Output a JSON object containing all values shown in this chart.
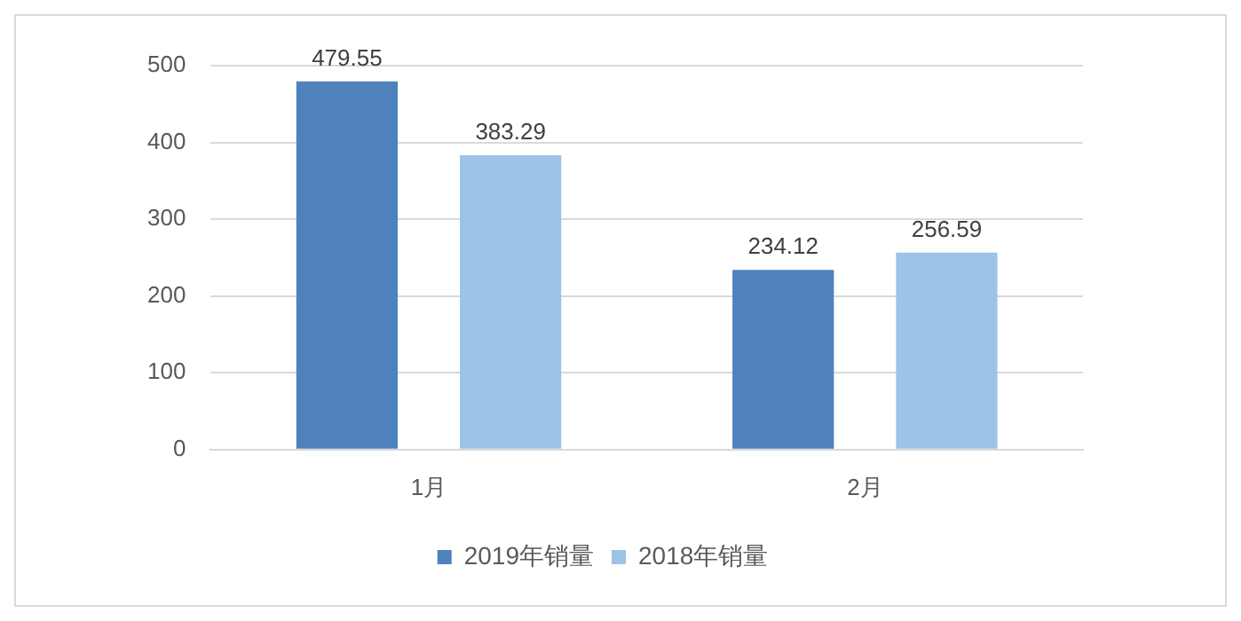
{
  "chart_data": {
    "type": "bar",
    "categories": [
      "1月",
      "2月"
    ],
    "series": [
      {
        "name": "2019年销量",
        "color": "#4f81bd",
        "values": [
          479.55,
          234.12
        ]
      },
      {
        "name": "2018年销量",
        "color": "#9dc3e6",
        "values": [
          383.29,
          256.59
        ]
      }
    ],
    "ylim": [
      0,
      500
    ],
    "yticks": [
      0,
      100,
      200,
      300,
      400,
      500
    ],
    "grid": "y",
    "legend": "bottom",
    "data_labels": true
  }
}
